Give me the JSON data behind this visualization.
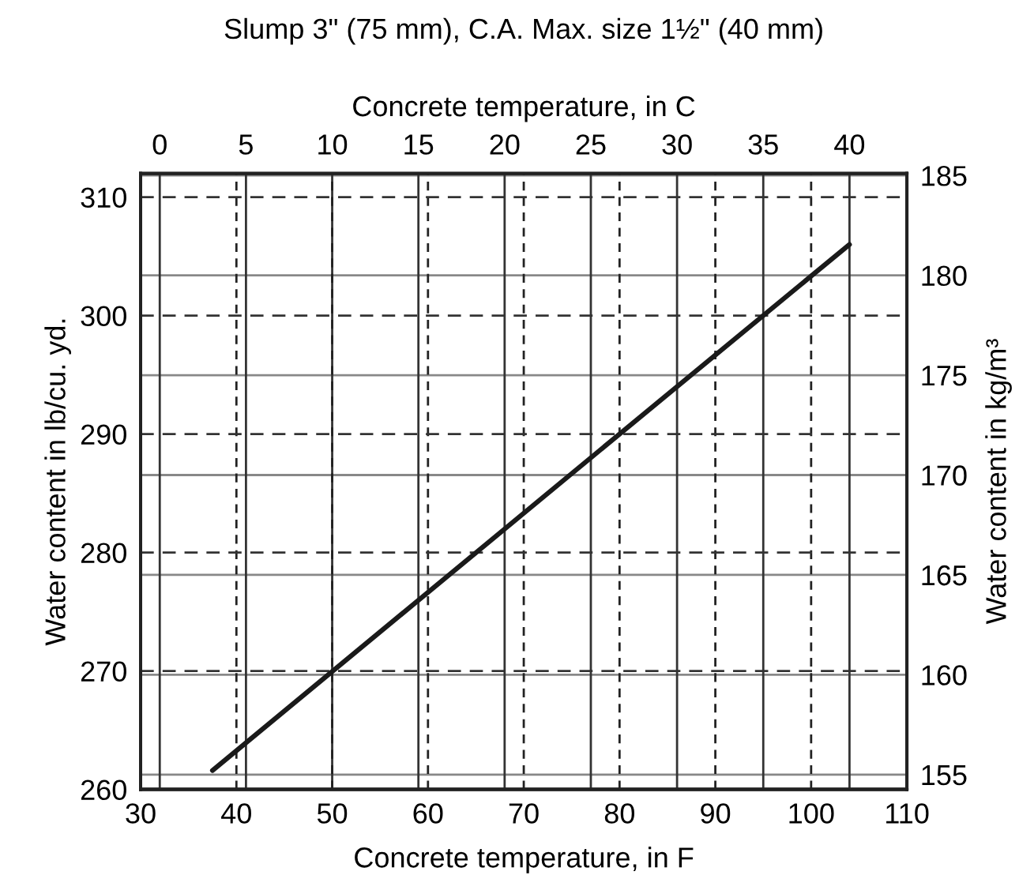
{
  "chart_data": {
    "type": "line",
    "title": "Slump 3\" (75 mm), C.A. Max. size 1½\" (40 mm)",
    "xlabel": "Concrete temperature, in F",
    "x2label": "Concrete temperature, in C",
    "ylabel": "Water content in lb/cu. yd.",
    "y2label": "Water content in kg/m³",
    "x": [
      37.5,
      80,
      104
    ],
    "series": [
      {
        "color": "#1a1a1a",
        "values": [
          261.6,
          290,
          306
        ]
      }
    ],
    "xlim": [
      30,
      110
    ],
    "xticks": [
      30,
      40,
      50,
      60,
      70,
      80,
      90,
      100,
      110
    ],
    "x2lim": [
      -1.11,
      43.33
    ],
    "x2ticks": [
      0,
      5,
      10,
      15,
      20,
      25,
      30,
      35,
      40
    ],
    "ylim": [
      260,
      312
    ],
    "yticks": [
      260,
      270,
      280,
      290,
      300,
      310
    ],
    "y2lim": [
      154.26,
      185.1
    ],
    "y2ticks": [
      155,
      160,
      165,
      170,
      175,
      180,
      185
    ],
    "grid": true,
    "marker": "none",
    "line_style": "solid"
  }
}
